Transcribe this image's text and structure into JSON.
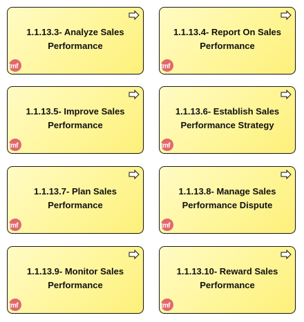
{
  "diagram": {
    "boxes": [
      {
        "label": "1.1.13.3- Analyze Sales Performance",
        "badge": "tmf",
        "icon": "process-arrow-icon"
      },
      {
        "label": "1.1.13.4- Report On Sales Performance",
        "badge": "tmf",
        "icon": "process-arrow-icon"
      },
      {
        "label": "1.1.13.5- Improve Sales Performance",
        "badge": "tmf",
        "icon": "process-arrow-icon"
      },
      {
        "label": "1.1.13.6- Establish Sales Performance Strategy",
        "badge": "tmf",
        "icon": "process-arrow-icon"
      },
      {
        "label": "1.1.13.7- Plan Sales Performance",
        "badge": "tmf",
        "icon": "process-arrow-icon"
      },
      {
        "label": "1.1.13.8- Manage Sales Performance Dispute",
        "badge": "tmf",
        "icon": "process-arrow-icon"
      },
      {
        "label": "1.1.13.9- Monitor Sales Performance",
        "badge": "tmf",
        "icon": "process-arrow-icon"
      },
      {
        "label": "1.1.13.10- Reward Sales Performance",
        "badge": "tmf",
        "icon": "process-arrow-icon"
      }
    ],
    "colors": {
      "box_fill": "#fff69a",
      "box_border": "#1a1a1a",
      "badge": "#e2686a"
    }
  }
}
